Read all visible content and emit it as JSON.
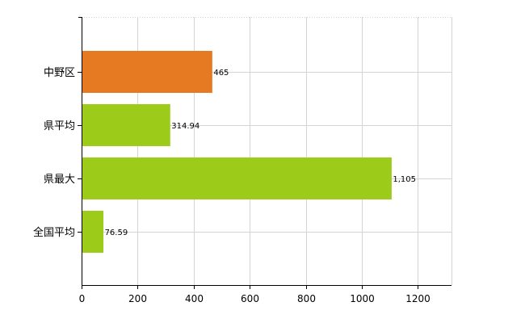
{
  "chart_data": {
    "type": "bar",
    "orientation": "horizontal",
    "categories": [
      "中野区",
      "県平均",
      "県最大",
      "全国平均"
    ],
    "values": [
      465,
      314.94,
      1105,
      76.59
    ],
    "value_labels": [
      "465",
      "314.94",
      "1,105",
      "76.59"
    ],
    "bar_colors": [
      "#e67a22",
      "#9ccb19",
      "#9ccb19",
      "#9ccb19"
    ],
    "xlim": [
      0,
      1320
    ],
    "xticks": [
      0,
      200,
      400,
      600,
      800,
      1000,
      1200
    ],
    "grid": true,
    "title": "",
    "xlabel": "",
    "ylabel": ""
  }
}
